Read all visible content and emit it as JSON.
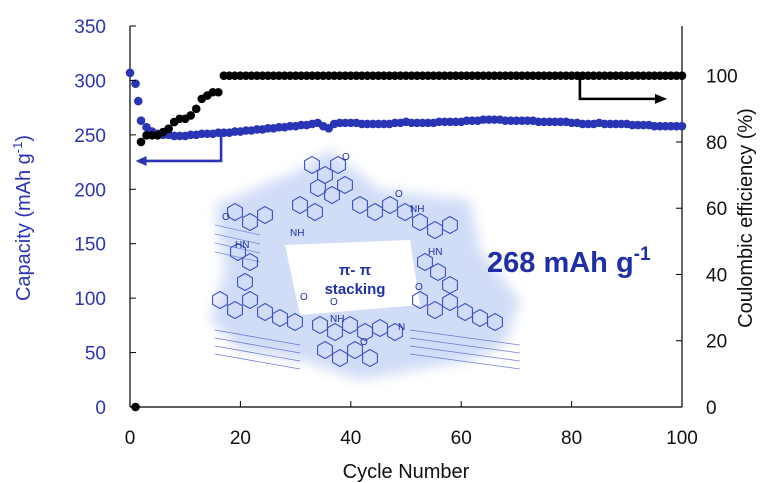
{
  "chart_data": {
    "type": "scatter",
    "xlabel": "Cycle Number",
    "ylabel_left": "Capacity (mAh g",
    "ylabel_left_sup": "-1",
    "ylabel_left_close": ")",
    "ylabel_right": "Coulombic efficiency (%)",
    "xlim": [
      0,
      100
    ],
    "ylim_left": [
      0,
      350
    ],
    "ylim_right": [
      0,
      115
    ],
    "x_ticks": [
      0,
      20,
      40,
      60,
      80,
      100
    ],
    "y_left_ticks": [
      0,
      50,
      100,
      150,
      200,
      250,
      300,
      350
    ],
    "y_right_ticks": [
      0,
      20,
      40,
      60,
      80,
      100
    ],
    "grid": false,
    "annotation": {
      "main": "268 mAh g",
      "sup": "-1"
    },
    "structure_label": [
      "π- π",
      "stacking"
    ],
    "colors": {
      "capacity": "#2a35b5",
      "efficiency": "#000000",
      "annotation": "#1f2fa6",
      "structure": "#3a4fc2",
      "glow": "#c9d6f5"
    },
    "series": [
      {
        "axis": "left",
        "color": "#2a35b5",
        "x": [
          0,
          1,
          1.5,
          2,
          3,
          4,
          5,
          6,
          7,
          8,
          9,
          10,
          11,
          12,
          13,
          14,
          15,
          16,
          17,
          18,
          19,
          20,
          21,
          22,
          23,
          24,
          25,
          26,
          27,
          28,
          29,
          30,
          31,
          32,
          33,
          34,
          35,
          36,
          37,
          38,
          39,
          40,
          41,
          42,
          43,
          44,
          45,
          46,
          47,
          48,
          49,
          50,
          51,
          52,
          53,
          54,
          55,
          56,
          57,
          58,
          59,
          60,
          61,
          62,
          63,
          64,
          65,
          66,
          67,
          68,
          69,
          70,
          71,
          72,
          73,
          74,
          75,
          76,
          77,
          78,
          79,
          80,
          81,
          82,
          83,
          84,
          85,
          86,
          87,
          88,
          89,
          90,
          91,
          92,
          93,
          94,
          95,
          96,
          97,
          98,
          99,
          100
        ],
        "values": [
          307,
          297,
          281,
          263,
          257,
          253,
          251,
          250,
          250,
          249,
          249,
          249,
          250,
          250,
          251,
          251,
          251,
          252,
          252,
          252,
          253,
          253,
          254,
          254,
          255,
          255,
          256,
          256,
          257,
          257,
          258,
          258,
          259,
          259,
          260,
          261,
          258,
          256,
          260,
          261,
          261,
          261,
          261,
          260,
          260,
          260,
          260,
          260,
          260,
          261,
          261,
          262,
          261,
          261,
          261,
          261,
          261,
          262,
          262,
          262,
          262,
          262,
          263,
          263,
          263,
          264,
          264,
          264,
          264,
          263,
          263,
          263,
          263,
          263,
          263,
          262,
          262,
          262,
          262,
          262,
          262,
          261,
          261,
          260,
          260,
          260,
          261,
          260,
          260,
          260,
          260,
          260,
          259,
          259,
          259,
          259,
          258,
          258,
          258,
          258,
          258,
          258
        ]
      },
      {
        "axis": "right",
        "color": "#000000",
        "x": [
          1,
          2,
          3,
          4,
          5,
          6,
          7,
          8,
          9,
          10,
          11,
          12,
          13,
          14,
          15,
          16,
          17,
          18,
          19,
          20,
          21,
          22,
          23,
          24,
          25,
          26,
          27,
          28,
          29,
          30,
          31,
          32,
          33,
          34,
          35,
          36,
          37,
          38,
          39,
          40,
          41,
          42,
          43,
          44,
          45,
          46,
          47,
          48,
          49,
          50,
          51,
          52,
          53,
          54,
          55,
          56,
          57,
          58,
          59,
          60,
          61,
          62,
          63,
          64,
          65,
          66,
          67,
          68,
          69,
          70,
          71,
          72,
          73,
          74,
          75,
          76,
          77,
          78,
          79,
          80,
          81,
          82,
          83,
          84,
          85,
          86,
          87,
          88,
          89,
          90,
          91,
          92,
          93,
          94,
          95,
          96,
          97,
          98,
          99,
          100
        ],
        "values": [
          0,
          80,
          82,
          82,
          82,
          83,
          84,
          86,
          87,
          87,
          88,
          90,
          93,
          94,
          95,
          95,
          100,
          100,
          100,
          100,
          100,
          100,
          100,
          100,
          100,
          100,
          100,
          100,
          100,
          100,
          100,
          100,
          100,
          100,
          100,
          100,
          100,
          100,
          100,
          100,
          100,
          100,
          100,
          100,
          100,
          100,
          100,
          100,
          100,
          100,
          100,
          100,
          100,
          100,
          100,
          100,
          100,
          100,
          100,
          100,
          100,
          100,
          100,
          100,
          100,
          100,
          100,
          100,
          100,
          100,
          100,
          100,
          100,
          100,
          100,
          100,
          100,
          100,
          100,
          100,
          100,
          100,
          100,
          100,
          100,
          100,
          100,
          100,
          100,
          100,
          100,
          100,
          100,
          100,
          100,
          100,
          100,
          100,
          100,
          100
        ]
      }
    ]
  }
}
